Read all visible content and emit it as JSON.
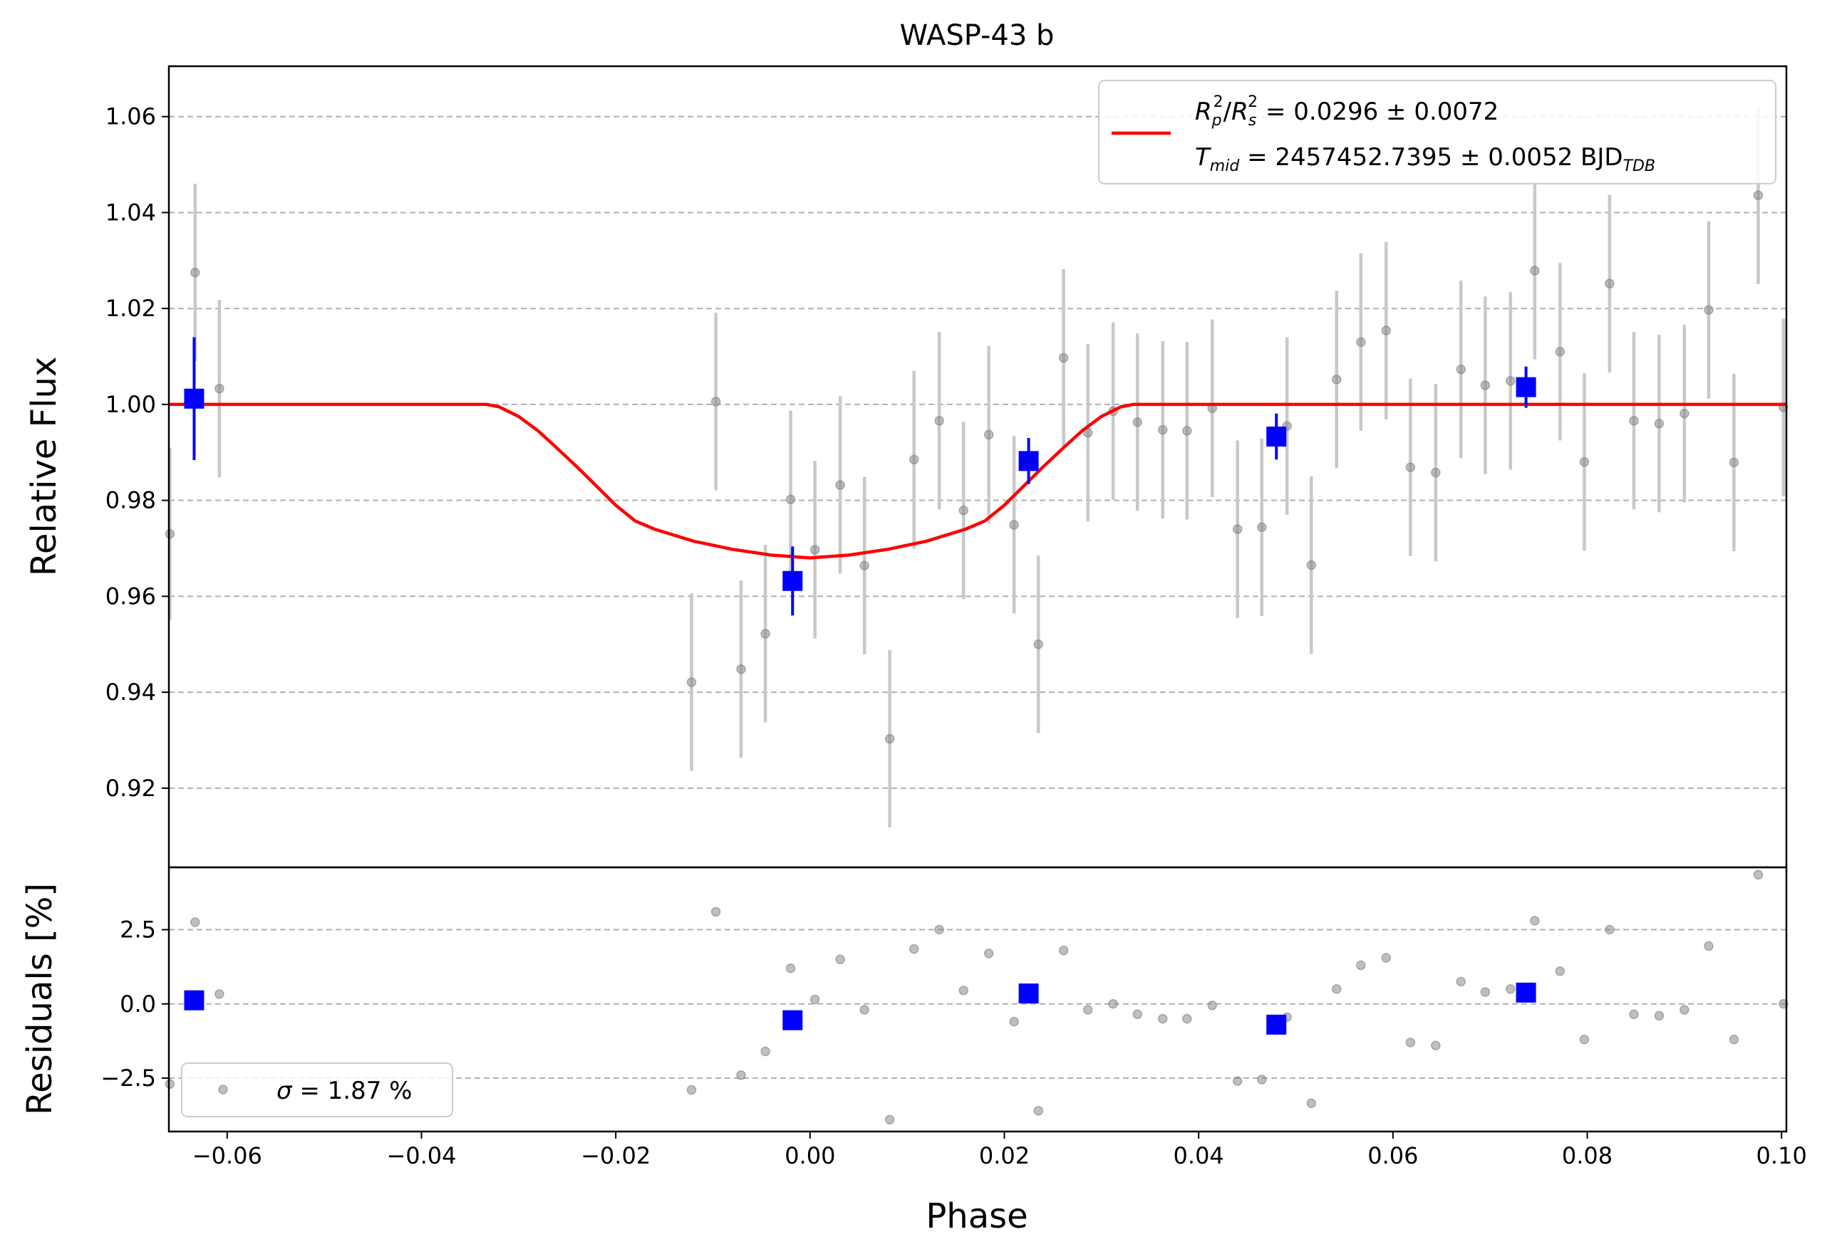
{
  "chart_data": [
    {
      "panel": "main",
      "type": "scatter",
      "title": "WASP-43 b",
      "xlabel": "Phase",
      "ylabel": "Relative Flux",
      "xlim": [
        -0.066,
        0.1005
      ],
      "ylim": [
        0.9035,
        1.0705
      ],
      "xticks": [
        -0.06,
        -0.04,
        -0.02,
        0.0,
        0.02,
        0.04,
        0.06,
        0.08,
        0.1
      ],
      "xtick_labels": [
        "−0.06",
        "−0.04",
        "−0.02",
        "0.00",
        "0.02",
        "0.04",
        "0.06",
        "0.08",
        "0.10"
      ],
      "yticks": [
        0.92,
        0.94,
        0.96,
        0.98,
        1.0,
        1.02,
        1.04,
        1.06
      ],
      "ytick_labels": [
        "0.92",
        "0.94",
        "0.96",
        "0.98",
        "1.00",
        "1.02",
        "1.04",
        "1.06"
      ],
      "grid": "y-dashed",
      "legend_placement": "top-right",
      "legend": {
        "model_line_color": "#ff0000",
        "line1": {
          "R": "R",
          "p": "p",
          "two": "2",
          "slash": "/",
          "Rs": "R",
          "s": "s",
          "two2": "2",
          "value": " = 0.0296 ± 0.0072"
        },
        "line2": {
          "T": "T",
          "mid": "mid",
          "value": " = 2457452.7395 ± 0.0052 BJD",
          "tdb": "TDB"
        }
      },
      "model": {
        "name": "transit model",
        "color": "#ff0000",
        "points": [
          [
            -0.066,
            1.0
          ],
          [
            -0.0333,
            1.0
          ],
          [
            -0.032,
            0.9995
          ],
          [
            -0.03,
            0.9975
          ],
          [
            -0.028,
            0.9945
          ],
          [
            -0.026,
            0.9908
          ],
          [
            -0.024,
            0.987
          ],
          [
            -0.022,
            0.983
          ],
          [
            -0.02,
            0.979
          ],
          [
            -0.018,
            0.9757
          ],
          [
            -0.016,
            0.974
          ],
          [
            -0.012,
            0.9715
          ],
          [
            -0.008,
            0.9698
          ],
          [
            -0.004,
            0.9686
          ],
          [
            0.0,
            0.968
          ],
          [
            0.004,
            0.9686
          ],
          [
            0.008,
            0.9698
          ],
          [
            0.012,
            0.9715
          ],
          [
            0.016,
            0.974
          ],
          [
            0.018,
            0.9757
          ],
          [
            0.02,
            0.979
          ],
          [
            0.022,
            0.983
          ],
          [
            0.024,
            0.987
          ],
          [
            0.026,
            0.9908
          ],
          [
            0.028,
            0.9945
          ],
          [
            0.03,
            0.9975
          ],
          [
            0.032,
            0.9995
          ],
          [
            0.0333,
            1.0
          ],
          [
            0.1005,
            1.0
          ]
        ]
      },
      "unbinned": {
        "color": "#808080",
        "errorbar_color": "#c8c8c8",
        "points": [
          [
            -0.0659,
            0.973,
            0.018
          ],
          [
            -0.0633,
            1.0275,
            0.0185
          ],
          [
            -0.0608,
            1.0033,
            0.0185
          ],
          [
            -0.0122,
            0.9421,
            0.0185
          ],
          [
            -0.0097,
            1.0006,
            0.0185
          ],
          [
            -0.0071,
            0.9448,
            0.0185
          ],
          [
            -0.0046,
            0.9522,
            0.0185
          ],
          [
            -0.002,
            0.9802,
            0.0185
          ],
          [
            0.0005,
            0.9697,
            0.0185
          ],
          [
            0.0031,
            0.9832,
            0.0185
          ],
          [
            0.0056,
            0.9664,
            0.0185
          ],
          [
            0.0082,
            0.9303,
            0.0185
          ],
          [
            0.0107,
            0.9885,
            0.0185
          ],
          [
            0.0133,
            0.9966,
            0.0185
          ],
          [
            0.0158,
            0.9779,
            0.0185
          ],
          [
            0.0184,
            0.9937,
            0.0185
          ],
          [
            0.021,
            0.9749,
            0.0185
          ],
          [
            0.0235,
            0.95,
            0.0185
          ],
          [
            0.0261,
            1.0097,
            0.0185
          ],
          [
            0.0286,
            0.9941,
            0.0185
          ],
          [
            0.0312,
            0.9986,
            0.0185
          ],
          [
            0.0337,
            0.9963,
            0.0185
          ],
          [
            0.0363,
            0.9947,
            0.0185
          ],
          [
            0.0388,
            0.9945,
            0.0185
          ],
          [
            0.0414,
            0.9992,
            0.0185
          ],
          [
            0.044,
            0.974,
            0.0185
          ],
          [
            0.0465,
            0.9744,
            0.0185
          ],
          [
            0.0491,
            0.9955,
            0.0185
          ],
          [
            0.0516,
            0.9665,
            0.0185
          ],
          [
            0.0542,
            1.0052,
            0.0185
          ],
          [
            0.0567,
            1.013,
            0.0185
          ],
          [
            0.0593,
            1.0154,
            0.0185
          ],
          [
            0.0618,
            0.9869,
            0.0185
          ],
          [
            0.0644,
            0.9858,
            0.0185
          ],
          [
            0.067,
            1.0073,
            0.0185
          ],
          [
            0.0695,
            1.004,
            0.0185
          ],
          [
            0.0721,
            1.0049,
            0.0185
          ],
          [
            0.0746,
            1.0279,
            0.0185
          ],
          [
            0.0772,
            1.011,
            0.0185
          ],
          [
            0.0797,
            0.988,
            0.0185
          ],
          [
            0.0823,
            1.0252,
            0.0185
          ],
          [
            0.0848,
            0.9966,
            0.0185
          ],
          [
            0.0874,
            0.996,
            0.0185
          ],
          [
            0.09,
            0.9981,
            0.0185
          ],
          [
            0.0925,
            1.0197,
            0.0185
          ],
          [
            0.0951,
            0.9879,
            0.0185
          ],
          [
            0.0976,
            1.0436,
            0.0185
          ],
          [
            0.1002,
            0.9994,
            0.0185
          ]
        ]
      },
      "binned": {
        "color": "#0000ff",
        "points": [
          [
            -0.0634,
            1.0012,
            0.0128
          ],
          [
            -0.0018,
            0.9632,
            0.0072
          ],
          [
            0.0225,
            0.9882,
            0.0048
          ],
          [
            0.048,
            0.9933,
            0.0048
          ],
          [
            0.0737,
            1.0036,
            0.0043
          ]
        ]
      }
    },
    {
      "panel": "residuals",
      "type": "scatter",
      "xlabel": "Phase",
      "ylabel": "Residuals [%]",
      "xlim": [
        -0.066,
        0.1005
      ],
      "ylim": [
        -4.3,
        4.6
      ],
      "yticks": [
        -2.5,
        0.0,
        2.5
      ],
      "ytick_labels": [
        "−2.5",
        "0.0",
        "2.5"
      ],
      "grid": "y-dashed",
      "legend_placement": "bottom-left",
      "legend": {
        "sigma": "σ",
        "value": " = 1.87 %"
      },
      "unbinned": {
        "color": "#808080",
        "points": [
          [
            -0.0659,
            -2.7
          ],
          [
            -0.0633,
            2.75
          ],
          [
            -0.0608,
            0.33
          ],
          [
            -0.0122,
            -2.9
          ],
          [
            -0.0097,
            3.1
          ],
          [
            -0.0071,
            -2.4
          ],
          [
            -0.0046,
            -1.6
          ],
          [
            -0.002,
            1.2
          ],
          [
            0.0005,
            0.15
          ],
          [
            0.0031,
            1.5
          ],
          [
            0.0056,
            -0.2
          ],
          [
            0.0082,
            -3.9
          ],
          [
            0.0107,
            1.85
          ],
          [
            0.0133,
            2.5
          ],
          [
            0.0158,
            0.45
          ],
          [
            0.0184,
            1.7
          ],
          [
            0.021,
            -0.6
          ],
          [
            0.0235,
            -3.6
          ],
          [
            0.0261,
            1.8
          ],
          [
            0.0286,
            -0.2
          ],
          [
            0.0312,
            0.0
          ],
          [
            0.0337,
            -0.35
          ],
          [
            0.0363,
            -0.5
          ],
          [
            0.0388,
            -0.5
          ],
          [
            0.0414,
            -0.05
          ],
          [
            0.044,
            -2.6
          ],
          [
            0.0465,
            -2.55
          ],
          [
            0.0491,
            -0.45
          ],
          [
            0.0516,
            -3.35
          ],
          [
            0.0542,
            0.5
          ],
          [
            0.0567,
            1.3
          ],
          [
            0.0593,
            1.55
          ],
          [
            0.0618,
            -1.3
          ],
          [
            0.0644,
            -1.4
          ],
          [
            0.067,
            0.75
          ],
          [
            0.0695,
            0.4
          ],
          [
            0.0721,
            0.5
          ],
          [
            0.0746,
            2.8
          ],
          [
            0.0772,
            1.1
          ],
          [
            0.0797,
            -1.2
          ],
          [
            0.0823,
            2.5
          ],
          [
            0.0848,
            -0.35
          ],
          [
            0.0874,
            -0.4
          ],
          [
            0.09,
            -0.2
          ],
          [
            0.0925,
            1.95
          ],
          [
            0.0951,
            -1.2
          ],
          [
            0.0976,
            4.35
          ],
          [
            0.1002,
            0.0
          ]
        ]
      },
      "binned": {
        "color": "#0000ff",
        "points": [
          [
            -0.0634,
            0.12
          ],
          [
            -0.0018,
            -0.55
          ],
          [
            0.0225,
            0.35
          ],
          [
            0.048,
            -0.7
          ],
          [
            0.0737,
            0.38
          ]
        ]
      }
    }
  ]
}
